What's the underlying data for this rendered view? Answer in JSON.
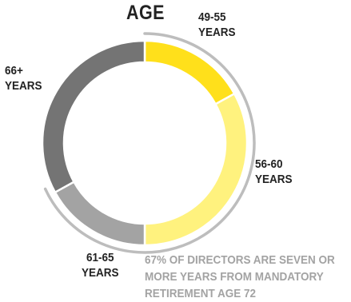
{
  "chart_data": {
    "type": "pie",
    "style": "donut",
    "title": "AGE",
    "slices": [
      {
        "label_line1": "49-55",
        "label_line2": "YEARS",
        "value": 17,
        "color": "#FFE01B"
      },
      {
        "label_line1": "56-60",
        "label_line2": "YEARS",
        "value": 33,
        "color": "#FFF27E"
      },
      {
        "label_line1": "61-65",
        "label_line2": "YEARS",
        "value": 17,
        "color": "#A3A3A3"
      },
      {
        "label_line1": "66+",
        "label_line2": "YEARS",
        "value": 33,
        "color": "#747474"
      }
    ],
    "annotation": "67% OF DIRECTORS ARE SEVEN OR MORE YEARS FROM MANDATORY RETIREMENT AGE 72",
    "bracket_color": "#BDBDBD"
  }
}
